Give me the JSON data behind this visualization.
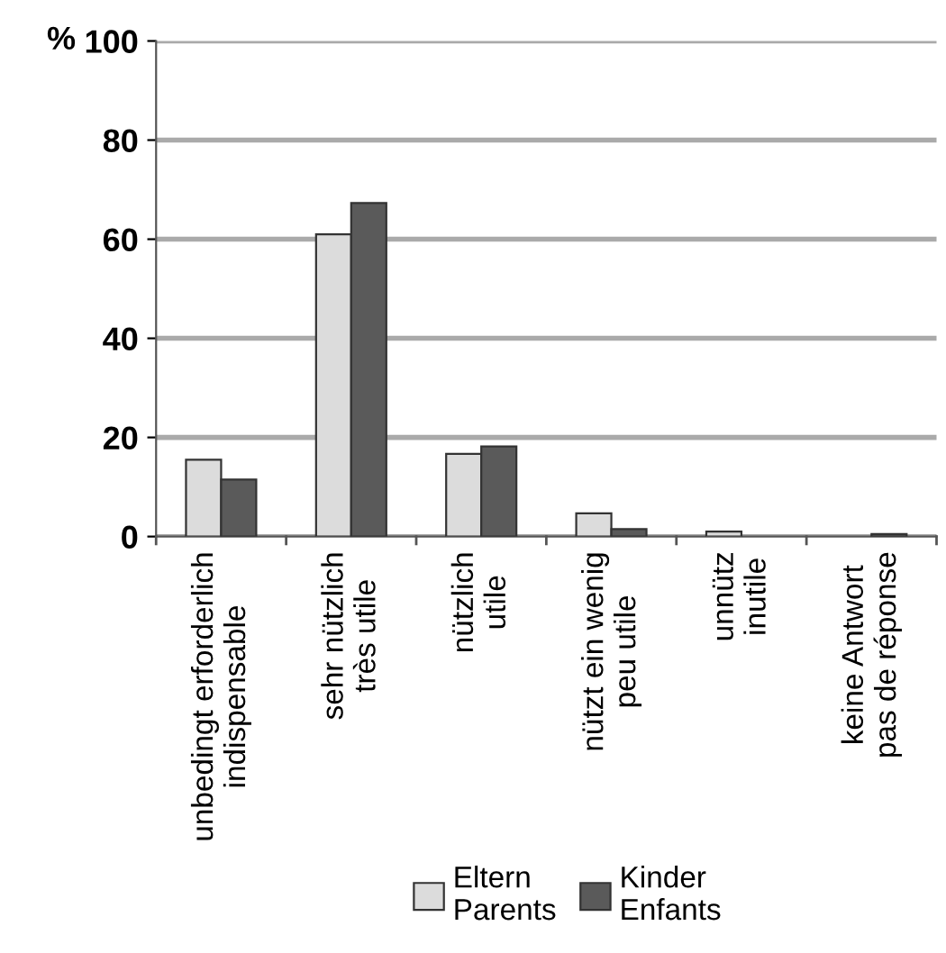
{
  "chart_data": {
    "type": "bar",
    "ylabel": "%",
    "categories": [
      "unbedingt erforderlich\nindispensable",
      "sehr nützlich\ntrès utile",
      "nützlich\nutile",
      "nützt ein wenig\npeu utile",
      "unnütz\ninutile",
      "keine Antwort\npas de réponse"
    ],
    "series": [
      {
        "name": "Eltern\nParents",
        "color": "#dcdcdc",
        "values": [
          15.5,
          61,
          16.7,
          4.7,
          1,
          0
        ]
      },
      {
        "name": "Kinder\nEnfants",
        "color": "#5a5a5a",
        "values": [
          11.5,
          67.3,
          18.2,
          1.5,
          0,
          0.5
        ]
      }
    ],
    "ylim": [
      0,
      100
    ],
    "yticks": [
      0,
      20,
      40,
      60,
      80,
      100
    ],
    "grid": "y",
    "legend": "bottom"
  }
}
